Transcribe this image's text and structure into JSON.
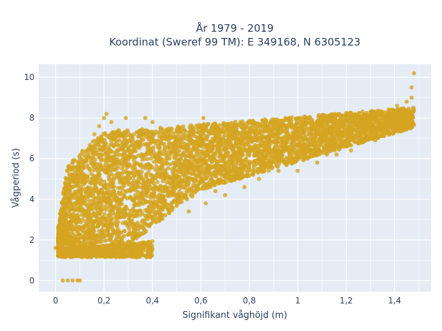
{
  "chart_data": {
    "type": "scatter",
    "title": [
      "År 1979 - 2019",
      "Koordinat (Sweref 99 TM): E 349168, N 6305123"
    ],
    "xlabel": "Signifikant våghöjd (m)",
    "ylabel": "Vågperiod (s)",
    "xlim": [
      -0.07,
      1.55
    ],
    "ylim": [
      -0.55,
      10.65
    ],
    "x_ticks": [
      0,
      0.2,
      0.4,
      0.6,
      0.8,
      1,
      1.2,
      1.4
    ],
    "x_tick_labels": [
      "0",
      "0,2",
      "0,4",
      "0,6",
      "0,8",
      "1",
      "1,2",
      "1,4"
    ],
    "y_ticks": [
      0,
      2,
      4,
      6,
      8,
      10
    ],
    "y_tick_labels": [
      "0",
      "2",
      "4",
      "6",
      "8",
      "10"
    ],
    "grid": true,
    "legend": "none",
    "marker_color": "#d4a522",
    "plot_bg": "#e5ecf6",
    "series": [
      {
        "name": "",
        "points": [
          [
            0.03,
            0.0
          ],
          [
            0.05,
            0.0
          ],
          [
            0.07,
            0.0
          ],
          [
            0.09,
            0.0
          ],
          [
            0.1,
            0.0
          ],
          [
            0.0,
            1.6
          ],
          [
            0.01,
            1.4
          ],
          [
            0.01,
            2.0
          ],
          [
            0.02,
            1.8
          ],
          [
            0.02,
            2.5
          ],
          [
            0.03,
            1.3
          ],
          [
            0.03,
            3.0
          ],
          [
            0.04,
            2.2
          ],
          [
            0.04,
            3.5
          ],
          [
            0.05,
            1.5
          ],
          [
            0.05,
            4.0
          ],
          [
            0.06,
            2.6
          ],
          [
            0.06,
            4.5
          ],
          [
            0.07,
            3.2
          ],
          [
            0.07,
            5.0
          ],
          [
            0.08,
            1.3
          ],
          [
            0.08,
            5.3
          ],
          [
            0.09,
            2.0
          ],
          [
            0.09,
            4.2
          ],
          [
            0.1,
            1.25
          ],
          [
            0.1,
            5.6
          ],
          [
            0.1,
            6.0
          ],
          [
            0.11,
            3.0
          ],
          [
            0.11,
            6.3
          ],
          [
            0.12,
            1.3
          ],
          [
            0.12,
            4.8
          ],
          [
            0.13,
            2.4
          ],
          [
            0.13,
            6.4
          ],
          [
            0.14,
            1.4
          ],
          [
            0.14,
            5.5
          ],
          [
            0.15,
            3.5
          ],
          [
            0.15,
            6.6
          ],
          [
            0.16,
            1.5
          ],
          [
            0.16,
            7.2
          ],
          [
            0.17,
            4.5
          ],
          [
            0.18,
            1.6
          ],
          [
            0.18,
            7.6
          ],
          [
            0.19,
            2.8
          ],
          [
            0.19,
            6.2
          ],
          [
            0.2,
            1.7
          ],
          [
            0.2,
            8.0
          ],
          [
            0.21,
            8.2
          ],
          [
            0.22,
            1.7
          ],
          [
            0.22,
            4.2
          ],
          [
            0.23,
            7.8
          ],
          [
            0.24,
            1.8
          ],
          [
            0.25,
            5.5
          ],
          [
            0.26,
            7.4
          ],
          [
            0.27,
            1.8
          ],
          [
            0.28,
            3.4
          ],
          [
            0.28,
            6.6
          ],
          [
            0.29,
            8.0
          ],
          [
            0.3,
            1.8
          ],
          [
            0.3,
            4.8
          ],
          [
            0.31,
            7.0
          ],
          [
            0.32,
            1.8
          ],
          [
            0.33,
            3.2
          ],
          [
            0.34,
            6.8
          ],
          [
            0.35,
            1.7
          ],
          [
            0.36,
            4.2
          ],
          [
            0.36,
            7.2
          ],
          [
            0.37,
            8.0
          ],
          [
            0.38,
            3.5
          ],
          [
            0.39,
            6.5
          ],
          [
            0.4,
            3.8
          ],
          [
            0.4,
            7.8
          ],
          [
            0.42,
            4.5
          ],
          [
            0.44,
            3.6
          ],
          [
            0.44,
            7.0
          ],
          [
            0.46,
            5.2
          ],
          [
            0.48,
            3.8
          ],
          [
            0.5,
            6.5
          ],
          [
            0.5,
            7.4
          ],
          [
            0.52,
            4.2
          ],
          [
            0.54,
            5.6
          ],
          [
            0.55,
            3.4
          ],
          [
            0.56,
            7.2
          ],
          [
            0.58,
            4.5
          ],
          [
            0.6,
            6.0
          ],
          [
            0.61,
            8.0
          ],
          [
            0.62,
            3.8
          ],
          [
            0.64,
            5.6
          ],
          [
            0.65,
            7.6
          ],
          [
            0.66,
            4.4
          ],
          [
            0.68,
            6.6
          ],
          [
            0.7,
            4.2
          ],
          [
            0.72,
            7.4
          ],
          [
            0.74,
            5.2
          ],
          [
            0.76,
            7.2
          ],
          [
            0.78,
            4.6
          ],
          [
            0.8,
            6.4
          ],
          [
            0.82,
            7.4
          ],
          [
            0.84,
            5.0
          ],
          [
            0.86,
            6.8
          ],
          [
            0.88,
            5.4
          ],
          [
            0.9,
            7.6
          ],
          [
            0.92,
            5.4
          ],
          [
            0.94,
            7.0
          ],
          [
            0.96,
            6.0
          ],
          [
            0.98,
            7.6
          ],
          [
            1.0,
            5.4
          ],
          [
            1.02,
            7.4
          ],
          [
            1.04,
            6.0
          ],
          [
            1.06,
            7.6
          ],
          [
            1.08,
            5.8
          ],
          [
            1.1,
            7.2
          ],
          [
            1.12,
            6.2
          ],
          [
            1.14,
            7.8
          ],
          [
            1.16,
            6.2
          ],
          [
            1.18,
            7.2
          ],
          [
            1.2,
            7.6
          ],
          [
            1.22,
            6.4
          ],
          [
            1.24,
            7.8
          ],
          [
            1.26,
            6.8
          ],
          [
            1.28,
            7.4
          ],
          [
            1.3,
            8.0
          ],
          [
            1.32,
            6.9
          ],
          [
            1.34,
            7.8
          ],
          [
            1.36,
            7.3
          ],
          [
            1.38,
            8.3
          ],
          [
            1.4,
            7.5
          ],
          [
            1.41,
            8.6
          ],
          [
            1.42,
            7.8
          ],
          [
            1.44,
            8.3
          ],
          [
            1.45,
            8.8
          ],
          [
            1.46,
            8.2
          ],
          [
            1.47,
            9.0
          ],
          [
            1.47,
            9.5
          ],
          [
            1.48,
            10.2
          ]
        ]
      }
    ]
  }
}
